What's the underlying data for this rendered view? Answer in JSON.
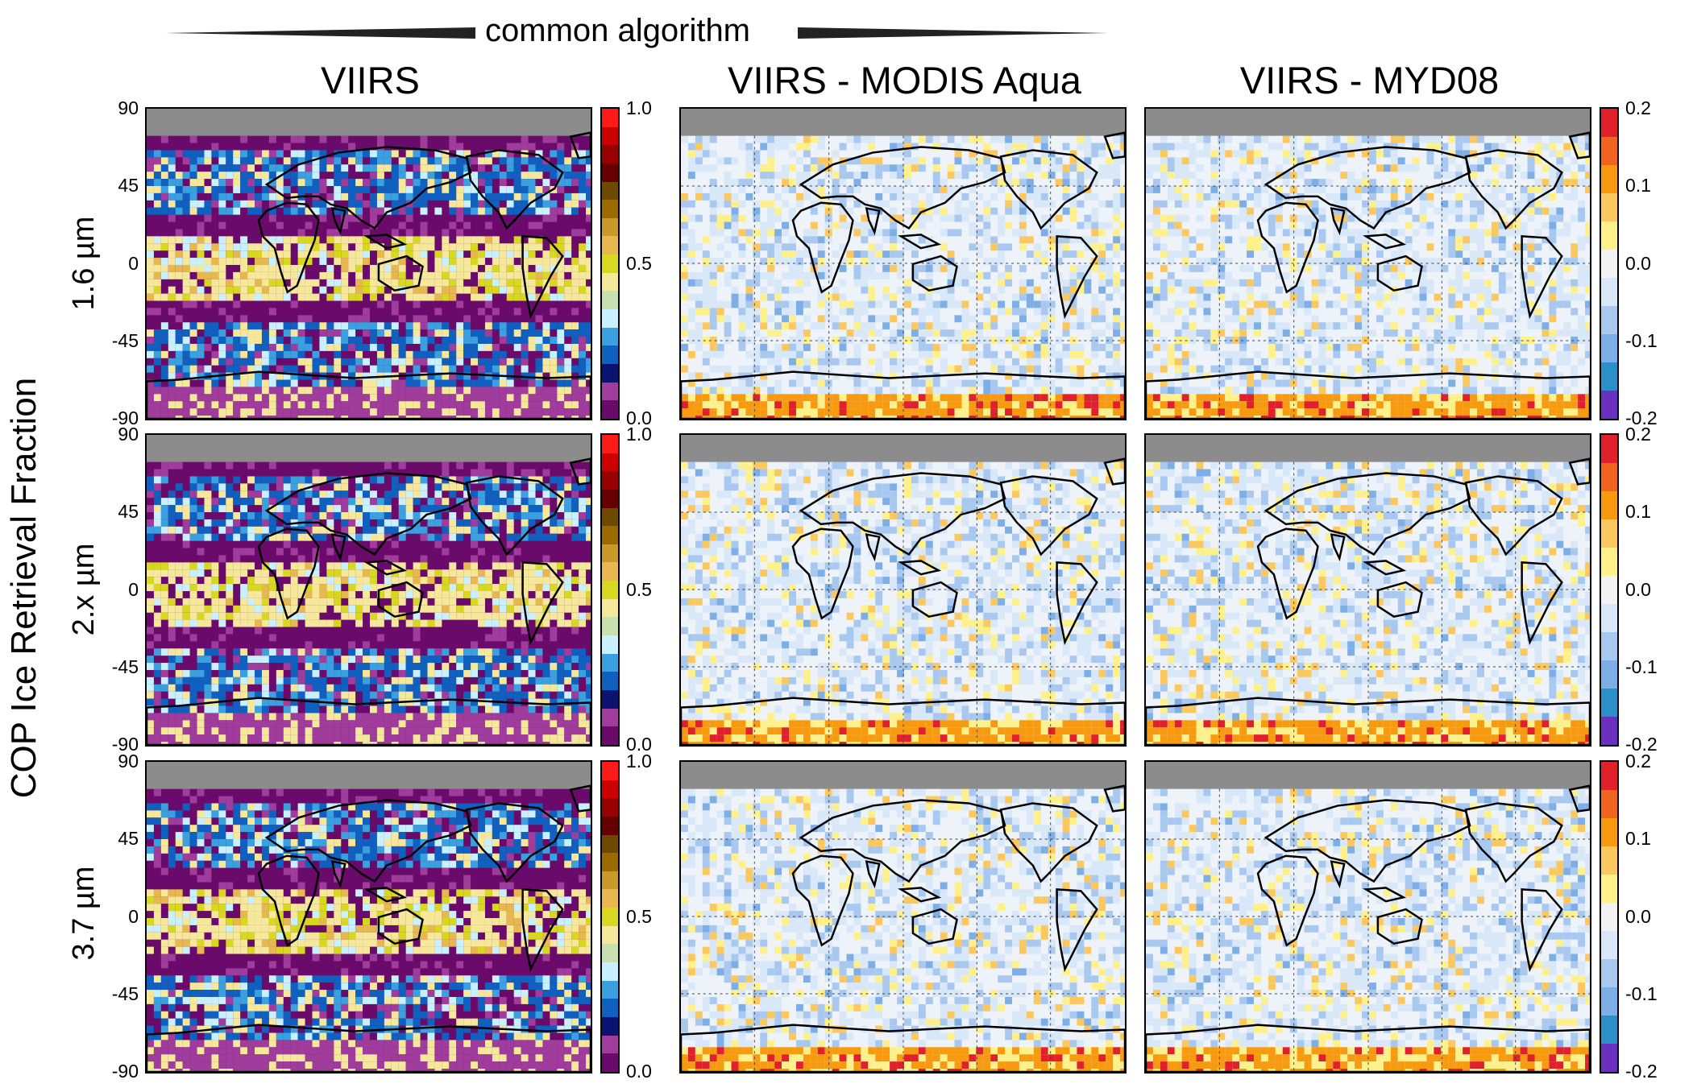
{
  "banner": {
    "label": "common algorithm"
  },
  "figure_ylabel": "COP Ice Retrieval Fraction",
  "columns": [
    {
      "title": "VIIRS"
    },
    {
      "title": "VIIRS - MODIS Aqua"
    },
    {
      "title": "VIIRS - MYD08"
    }
  ],
  "rows": [
    {
      "label": "1.6 µm"
    },
    {
      "label": "2.x µm"
    },
    {
      "label": "3.7 µm"
    }
  ],
  "lat_ticks": [
    "90",
    "45",
    "0",
    "-45",
    "-90"
  ],
  "colorbar_abs": {
    "ticks": [
      "1.0",
      "0.5",
      "0.0"
    ],
    "range": [
      0,
      1
    ],
    "colors_top_to_bottom": [
      "#ff1a1a",
      "#cc0000",
      "#990000",
      "#660000",
      "#6e4a00",
      "#9c6b00",
      "#c89a2a",
      "#e8b850",
      "#d8d820",
      "#f5e89a",
      "#c8e0b0",
      "#c8f0ff",
      "#3aa0e0",
      "#1060c0",
      "#0a1470",
      "#a03c9c",
      "#6a0a6a"
    ]
  },
  "colorbar_diff": {
    "ticks": [
      "0.2",
      "0.1",
      "0.0",
      "-0.1",
      "-0.2"
    ],
    "range": [
      -0.2,
      0.2
    ],
    "colors_top_to_bottom": [
      "#e0202a",
      "#f06420",
      "#f79a10",
      "#fbc860",
      "#fef08a",
      "#f2f2f2",
      "#d8e8f8",
      "#a8c8f0",
      "#7eaee6",
      "#2c90c8",
      "#6a30c0"
    ]
  },
  "chart_data": [
    {
      "type": "heatmap",
      "title": "VIIRS",
      "row": "1.6 µm",
      "ylim": [
        -90,
        90
      ],
      "value_range": [
        0,
        1
      ]
    },
    {
      "type": "heatmap",
      "title": "VIIRS - MODIS Aqua",
      "row": "1.6 µm",
      "ylim": [
        -90,
        90
      ],
      "value_range": [
        -0.2,
        0.2
      ]
    },
    {
      "type": "heatmap",
      "title": "VIIRS - MYD08",
      "row": "1.6 µm",
      "ylim": [
        -90,
        90
      ],
      "value_range": [
        -0.2,
        0.2
      ]
    },
    {
      "type": "heatmap",
      "title": "VIIRS",
      "row": "2.x µm",
      "ylim": [
        -90,
        90
      ],
      "value_range": [
        0,
        1
      ]
    },
    {
      "type": "heatmap",
      "title": "VIIRS - MODIS Aqua",
      "row": "2.x µm",
      "ylim": [
        -90,
        90
      ],
      "value_range": [
        -0.2,
        0.2
      ]
    },
    {
      "type": "heatmap",
      "title": "VIIRS - MYD08",
      "row": "2.x µm",
      "ylim": [
        -90,
        90
      ],
      "value_range": [
        -0.2,
        0.2
      ]
    },
    {
      "type": "heatmap",
      "title": "VIIRS",
      "row": "3.7 µm",
      "ylim": [
        -90,
        90
      ],
      "value_range": [
        0,
        1
      ]
    },
    {
      "type": "heatmap",
      "title": "VIIRS - MODIS Aqua",
      "row": "3.7 µm",
      "ylim": [
        -90,
        90
      ],
      "value_range": [
        -0.2,
        0.2
      ]
    },
    {
      "type": "heatmap",
      "title": "VIIRS - MYD08",
      "row": "3.7 µm",
      "ylim": [
        -90,
        90
      ],
      "value_range": [
        -0.2,
        0.2
      ]
    }
  ]
}
